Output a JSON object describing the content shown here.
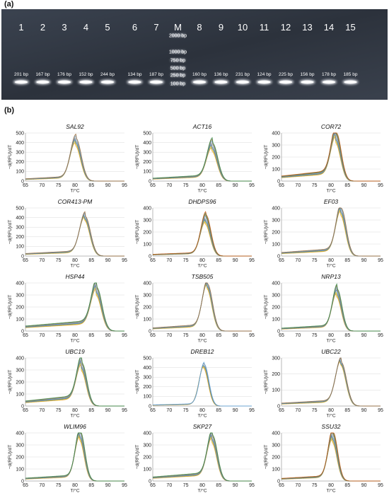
{
  "panel_a_label": "(a)",
  "panel_b_label": "(b)",
  "gel": {
    "lanes": [
      {
        "num": "1",
        "bp": "201 bp"
      },
      {
        "num": "2",
        "bp": "167 bp"
      },
      {
        "num": "3",
        "bp": "176 bp"
      },
      {
        "num": "4",
        "bp": "152 bp"
      },
      {
        "num": "5",
        "bp": "244 bp"
      },
      {
        "num": "6",
        "bp": "134 bp"
      },
      {
        "num": "7",
        "bp": "187 bp"
      },
      {
        "num": "M",
        "bp": ""
      },
      {
        "num": "8",
        "bp": "160 bp"
      },
      {
        "num": "9",
        "bp": "136 bp"
      },
      {
        "num": "10",
        "bp": "231 bp"
      },
      {
        "num": "11",
        "bp": "124 bp"
      },
      {
        "num": "12",
        "bp": "225 bp"
      },
      {
        "num": "13",
        "bp": "156 bp"
      },
      {
        "num": "14",
        "bp": "178 bp"
      },
      {
        "num": "15",
        "bp": "185 bp"
      }
    ],
    "ladder": [
      "2000 bp",
      "1000 bp",
      "750 bp",
      "500 bp",
      "250 bp",
      "100 bp"
    ]
  },
  "palette": [
    "#e8a23a",
    "#d4c21c",
    "#2f6fb0",
    "#8a8a8a",
    "#6aa8d8",
    "#9a6b3a",
    "#3d8a4a",
    "#c25a1a"
  ],
  "chart_data": [
    {
      "type": "line",
      "title": "SAL92",
      "xlabel": "T/°C",
      "ylabel": "−d(RFU)/dT",
      "xlim": [
        65,
        95
      ],
      "xticks": [
        65,
        70,
        75,
        80,
        85,
        90,
        95
      ],
      "ylim": [
        0,
        500
      ],
      "yticks": [
        0,
        100,
        200,
        300,
        400,
        500
      ],
      "tm": 80.2,
      "peak": 400,
      "width": 1.6,
      "base": 20,
      "n": 6,
      "spread": 0.09
    },
    {
      "type": "line",
      "title": "ACT16",
      "xlabel": "T/°C",
      "ylabel": "−d(RFU)/dT",
      "xlim": [
        65,
        95
      ],
      "xticks": [
        65,
        70,
        75,
        80,
        85,
        90,
        95
      ],
      "ylim": [
        0,
        500
      ],
      "yticks": [
        0,
        100,
        200,
        300,
        400,
        500
      ],
      "tm": 83.0,
      "peak": 345,
      "width": 1.6,
      "base": 25,
      "n": 7,
      "spread": 0.12
    },
    {
      "type": "line",
      "title": "COR72",
      "xlabel": "T/°C",
      "ylabel": "−d(RFU)/dT",
      "xlim": [
        65,
        95
      ],
      "xticks": [
        65,
        70,
        75,
        80,
        85,
        90,
        95
      ],
      "ylim": [
        0,
        400
      ],
      "yticks": [
        0,
        100,
        200,
        300,
        400
      ],
      "tm": 81.5,
      "peak": 350,
      "width": 1.5,
      "base": 35,
      "n": 8,
      "spread": 0.12
    },
    {
      "type": "line",
      "title": "COR413-PM",
      "xlabel": "T/°C",
      "ylabel": "−d(RFU)/dT",
      "xlim": [
        65,
        95
      ],
      "xticks": [
        65,
        70,
        75,
        80,
        85,
        90,
        95
      ],
      "ylim": [
        0,
        500
      ],
      "yticks": [
        0,
        100,
        200,
        300,
        400,
        500
      ],
      "tm": 83.0,
      "peak": 385,
      "width": 1.6,
      "base": 22,
      "n": 6,
      "spread": 0.05
    },
    {
      "type": "line",
      "title": "DHDPS96",
      "xlabel": "T/°C",
      "ylabel": "−d(RFU)/dT",
      "xlim": [
        65,
        95
      ],
      "xticks": [
        65,
        70,
        75,
        80,
        85,
        90,
        95
      ],
      "ylim": [
        0,
        400
      ],
      "yticks": [
        0,
        100,
        200,
        300,
        400
      ],
      "tm": 81.0,
      "peak": 300,
      "width": 1.5,
      "base": 12,
      "n": 8,
      "spread": 0.13
    },
    {
      "type": "line",
      "title": "EF03",
      "xlabel": "T/°C",
      "ylabel": "−d(RFU)/dT",
      "xlim": [
        65,
        95
      ],
      "xticks": [
        65,
        70,
        75,
        80,
        85,
        90,
        95
      ],
      "ylim": [
        0,
        400
      ],
      "yticks": [
        0,
        100,
        200,
        300,
        400
      ],
      "tm": 83.0,
      "peak": 360,
      "width": 1.5,
      "base": 25,
      "n": 6,
      "spread": 0.08
    },
    {
      "type": "line",
      "title": "HSP44",
      "xlabel": "T/°C",
      "ylabel": "−d(RFU)/dT",
      "xlim": [
        65,
        95
      ],
      "xticks": [
        65,
        70,
        75,
        80,
        85,
        90,
        95
      ],
      "ylim": [
        0,
        400
      ],
      "yticks": [
        0,
        100,
        200,
        300,
        400
      ],
      "tm": 86.5,
      "peak": 320,
      "width": 1.6,
      "base": 35,
      "n": 7,
      "spread": 0.1
    },
    {
      "type": "line",
      "title": "TSB505",
      "xlabel": "T/°C",
      "ylabel": "−d(RFU)/dT",
      "xlim": [
        65,
        95
      ],
      "xticks": [
        65,
        70,
        75,
        80,
        85,
        90,
        95
      ],
      "ylim": [
        0,
        400
      ],
      "yticks": [
        0,
        100,
        200,
        300,
        400
      ],
      "tm": 81.5,
      "peak": 365,
      "width": 1.5,
      "base": 22,
      "n": 6,
      "spread": 0.05
    },
    {
      "type": "line",
      "title": "NRP13",
      "xlabel": "T/°C",
      "ylabel": "−d(RFU)/dT",
      "xlim": [
        65,
        95
      ],
      "xticks": [
        65,
        70,
        75,
        80,
        85,
        90,
        95
      ],
      "ylim": [
        0,
        400
      ],
      "yticks": [
        0,
        100,
        200,
        300,
        400
      ],
      "tm": 81.8,
      "peak": 310,
      "width": 1.4,
      "base": 20,
      "n": 7,
      "spread": 0.1
    },
    {
      "type": "line",
      "title": "UBC19",
      "xlabel": "T/°C",
      "ylabel": "−d(RFU)/dT",
      "xlim": [
        65,
        95
      ],
      "xticks": [
        65,
        70,
        75,
        80,
        85,
        90,
        95
      ],
      "ylim": [
        0,
        400
      ],
      "yticks": [
        0,
        100,
        200,
        300,
        400
      ],
      "tm": 82.0,
      "peak": 315,
      "width": 1.5,
      "base": 35,
      "n": 7,
      "spread": 0.1
    },
    {
      "type": "line",
      "title": "DREB12",
      "xlabel": "T/°C",
      "ylabel": "−d(RFU)/dT",
      "xlim": [
        65,
        95
      ],
      "xticks": [
        65,
        70,
        75,
        80,
        85,
        90,
        95
      ],
      "ylim": [
        0,
        500
      ],
      "yticks": [
        0,
        100,
        200,
        300,
        400,
        500
      ],
      "tm": 80.5,
      "peak": 410,
      "width": 1.4,
      "base": 10,
      "n": 5,
      "spread": 0.05
    },
    {
      "type": "line",
      "title": "UBC22",
      "xlabel": "T/°C",
      "ylabel": "−d(RFU)/dT",
      "xlim": [
        65,
        95
      ],
      "xticks": [
        65,
        70,
        75,
        80,
        85,
        90,
        95
      ],
      "ylim": [
        0,
        300
      ],
      "yticks": [
        0,
        100,
        200,
        300
      ],
      "tm": 83.0,
      "peak": 260,
      "width": 1.6,
      "base": 15,
      "n": 6,
      "spread": 0.03
    },
    {
      "type": "line",
      "title": "WLIM96",
      "xlabel": "T/°C",
      "ylabel": "−d(RFU)/dT",
      "xlim": [
        65,
        95
      ],
      "xticks": [
        65,
        70,
        75,
        80,
        85,
        90,
        95
      ],
      "ylim": [
        0,
        400
      ],
      "yticks": [
        0,
        100,
        200,
        300,
        400
      ],
      "tm": 81.5,
      "peak": 370,
      "width": 1.4,
      "base": 20,
      "n": 7,
      "spread": 0.1
    },
    {
      "type": "line",
      "title": "SKP27",
      "xlabel": "T/°C",
      "ylabel": "−d(RFU)/dT",
      "xlim": [
        65,
        95
      ],
      "xticks": [
        65,
        70,
        75,
        80,
        85,
        90,
        95
      ],
      "ylim": [
        0,
        400
      ],
      "yticks": [
        0,
        100,
        200,
        300,
        400
      ],
      "tm": 83.0,
      "peak": 340,
      "width": 1.5,
      "base": 28,
      "n": 7,
      "spread": 0.09
    },
    {
      "type": "line",
      "title": "SSU32",
      "xlabel": "T/°C",
      "ylabel": "−d(RFU)/dT",
      "xlim": [
        65,
        95
      ],
      "xticks": [
        65,
        70,
        75,
        80,
        85,
        90,
        95
      ],
      "ylim": [
        0,
        400
      ],
      "yticks": [
        0,
        100,
        200,
        300,
        400
      ],
      "tm": 80.5,
      "peak": 360,
      "width": 1.4,
      "base": 18,
      "n": 8,
      "spread": 0.12
    }
  ]
}
